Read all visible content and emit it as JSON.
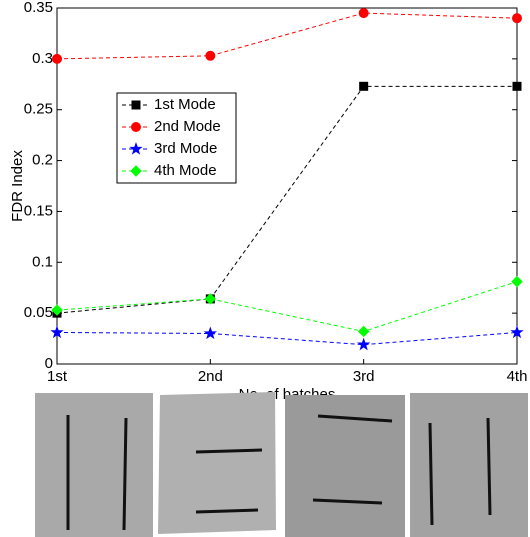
{
  "chart_data": {
    "type": "line",
    "x_label": "No. of batches",
    "y_label": "FDR Index",
    "categories": [
      "1st",
      "2nd",
      "3rd",
      "4th"
    ],
    "series": [
      {
        "name": "1st Mode",
        "color": "#000000",
        "marker": "square",
        "values": [
          0.05,
          0.064,
          0.273,
          0.273
        ]
      },
      {
        "name": "2nd Mode",
        "color": "#ff0000",
        "marker": "circle",
        "values": [
          0.3,
          0.303,
          0.345,
          0.34
        ]
      },
      {
        "name": "3rd Mode",
        "color": "#0000ff",
        "marker": "star",
        "values": [
          0.031,
          0.03,
          0.019,
          0.031
        ]
      },
      {
        "name": "4th Mode",
        "color": "#00ff00",
        "marker": "diamond",
        "values": [
          0.053,
          0.064,
          0.032,
          0.081
        ]
      }
    ],
    "line_style": "dashed",
    "ylim": [
      0,
      0.35
    ],
    "yticks": [
      0,
      0.05,
      0.1,
      0.15,
      0.2,
      0.25,
      0.3,
      0.35
    ],
    "grid": false,
    "legend": "upper left"
  }
}
